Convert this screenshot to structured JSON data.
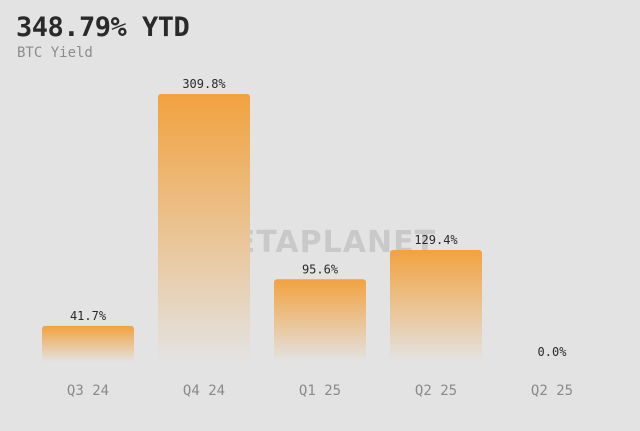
{
  "header": {
    "title": "348.79% YTD",
    "subtitle": "BTC Yield"
  },
  "watermark": "METAPLANET",
  "colors": {
    "background": "#e3e3e3",
    "bar_top": "#f2a23f",
    "bar_bottom": "#e3e3e3"
  },
  "chart_data": {
    "type": "bar",
    "categories": [
      "Q3 24",
      "Q4 24",
      "Q1 25",
      "Q2 25",
      "Q2 25"
    ],
    "values": [
      41.7,
      309.8,
      95.6,
      129.4,
      0.0
    ],
    "value_labels": [
      "41.7%",
      "309.8%",
      "95.6%",
      "129.4%",
      "0.0%"
    ],
    "title": "348.79% YTD",
    "subtitle": "BTC Yield",
    "xlabel": "",
    "ylabel": "",
    "ylim": [
      0,
      309.8
    ],
    "grid": false,
    "legend": "none"
  }
}
